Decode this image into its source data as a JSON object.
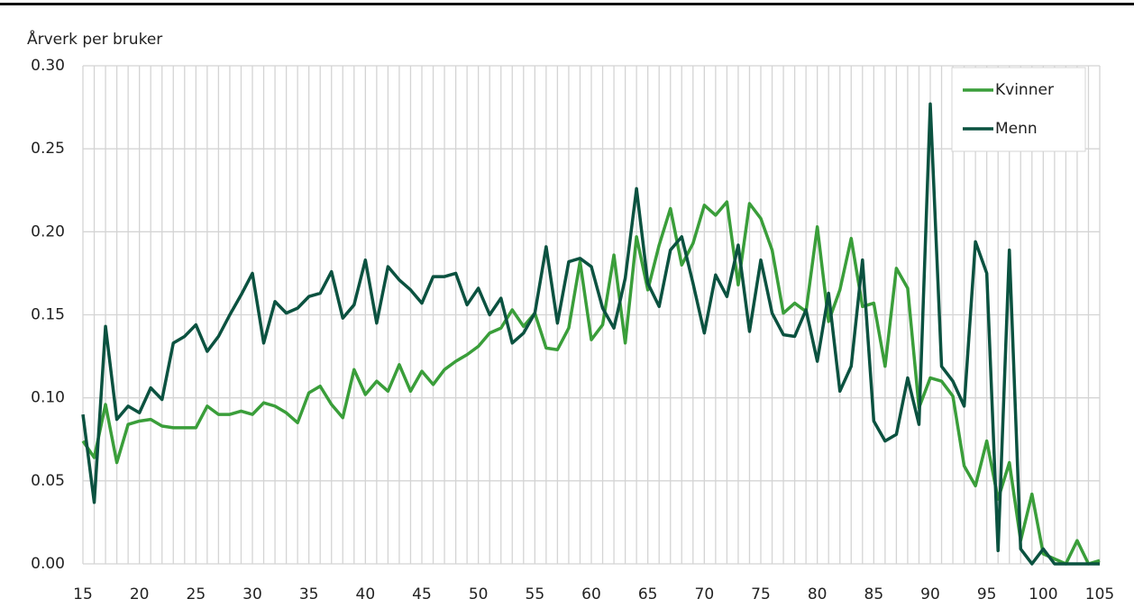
{
  "chart_data": {
    "type": "line",
    "y_label": "Årverk per bruker",
    "x": [
      15,
      16,
      17,
      18,
      19,
      20,
      21,
      22,
      23,
      24,
      25,
      26,
      27,
      28,
      29,
      30,
      31,
      32,
      33,
      34,
      35,
      36,
      37,
      38,
      39,
      40,
      41,
      42,
      43,
      44,
      45,
      46,
      47,
      48,
      49,
      50,
      51,
      52,
      53,
      54,
      55,
      56,
      57,
      58,
      59,
      60,
      61,
      62,
      63,
      64,
      65,
      66,
      67,
      68,
      69,
      70,
      71,
      72,
      73,
      74,
      75,
      76,
      77,
      78,
      79,
      80,
      81,
      82,
      83,
      84,
      85,
      86,
      87,
      88,
      89,
      90,
      91,
      92,
      93,
      94,
      95,
      96,
      97,
      98,
      99,
      100,
      101,
      102,
      103,
      104,
      105
    ],
    "series": [
      {
        "name": "Kvinner",
        "color": "#3a9e3a",
        "values": [
          0.074,
          0.064,
          0.096,
          0.061,
          0.084,
          0.086,
          0.087,
          0.083,
          0.082,
          0.082,
          0.082,
          0.095,
          0.09,
          0.09,
          0.092,
          0.09,
          0.097,
          0.095,
          0.091,
          0.085,
          0.103,
          0.107,
          0.096,
          0.088,
          0.117,
          0.102,
          0.11,
          0.104,
          0.12,
          0.104,
          0.116,
          0.108,
          0.117,
          0.122,
          0.126,
          0.131,
          0.139,
          0.142,
          0.153,
          0.143,
          0.151,
          0.13,
          0.129,
          0.142,
          0.182,
          0.135,
          0.144,
          0.186,
          0.133,
          0.197,
          0.165,
          0.192,
          0.214,
          0.18,
          0.193,
          0.216,
          0.21,
          0.218,
          0.168,
          0.217,
          0.208,
          0.189,
          0.151,
          0.157,
          0.152,
          0.203,
          0.146,
          0.165,
          0.196,
          0.155,
          0.157,
          0.119,
          0.178,
          0.166,
          0.094,
          0.112,
          0.11,
          0.101,
          0.059,
          0.047,
          0.074,
          0.039,
          0.061,
          0.014,
          0.042,
          0.006,
          0.003,
          0,
          0.014,
          0,
          0.002
        ]
      },
      {
        "name": "Menn",
        "color": "#0b5240",
        "values": [
          0.09,
          0.037,
          0.143,
          0.087,
          0.095,
          0.091,
          0.106,
          0.099,
          0.133,
          0.137,
          0.144,
          0.128,
          0.137,
          0.15,
          0.162,
          0.175,
          0.133,
          0.158,
          0.151,
          0.154,
          0.161,
          0.163,
          0.176,
          0.148,
          0.156,
          0.183,
          0.145,
          0.179,
          0.171,
          0.165,
          0.157,
          0.173,
          0.173,
          0.175,
          0.156,
          0.166,
          0.15,
          0.16,
          0.133,
          0.139,
          0.151,
          0.191,
          0.145,
          0.182,
          0.184,
          0.179,
          0.154,
          0.142,
          0.172,
          0.226,
          0.169,
          0.155,
          0.189,
          0.197,
          0.169,
          0.139,
          0.174,
          0.161,
          0.192,
          0.14,
          0.183,
          0.151,
          0.138,
          0.137,
          0.153,
          0.122,
          0.163,
          0.104,
          0.119,
          0.183,
          0.086,
          0.074,
          0.078,
          0.112,
          0.084,
          0.277,
          0.119,
          0.11,
          0.095,
          0.194,
          0.175,
          0.008,
          0.189,
          0.009,
          0,
          0.009,
          0,
          0,
          0,
          0,
          0
        ]
      }
    ],
    "xlim": [
      15,
      105
    ],
    "xticks": [
      15,
      20,
      25,
      30,
      35,
      40,
      45,
      50,
      55,
      60,
      65,
      70,
      75,
      80,
      85,
      90,
      95,
      100,
      105
    ],
    "ylim": [
      0,
      0.3
    ],
    "yticks": [
      {
        "value": 0,
        "label": "0.00"
      },
      {
        "value": 0.05,
        "label": "0.05"
      },
      {
        "value": 0.1,
        "label": "0.10"
      },
      {
        "value": 0.15,
        "label": "0.15"
      },
      {
        "value": 0.2,
        "label": "0.20"
      },
      {
        "value": 0.25,
        "label": "0.25"
      },
      {
        "value": 0.3,
        "label": "0.30"
      }
    ],
    "grid": true,
    "legend": "top-right"
  }
}
